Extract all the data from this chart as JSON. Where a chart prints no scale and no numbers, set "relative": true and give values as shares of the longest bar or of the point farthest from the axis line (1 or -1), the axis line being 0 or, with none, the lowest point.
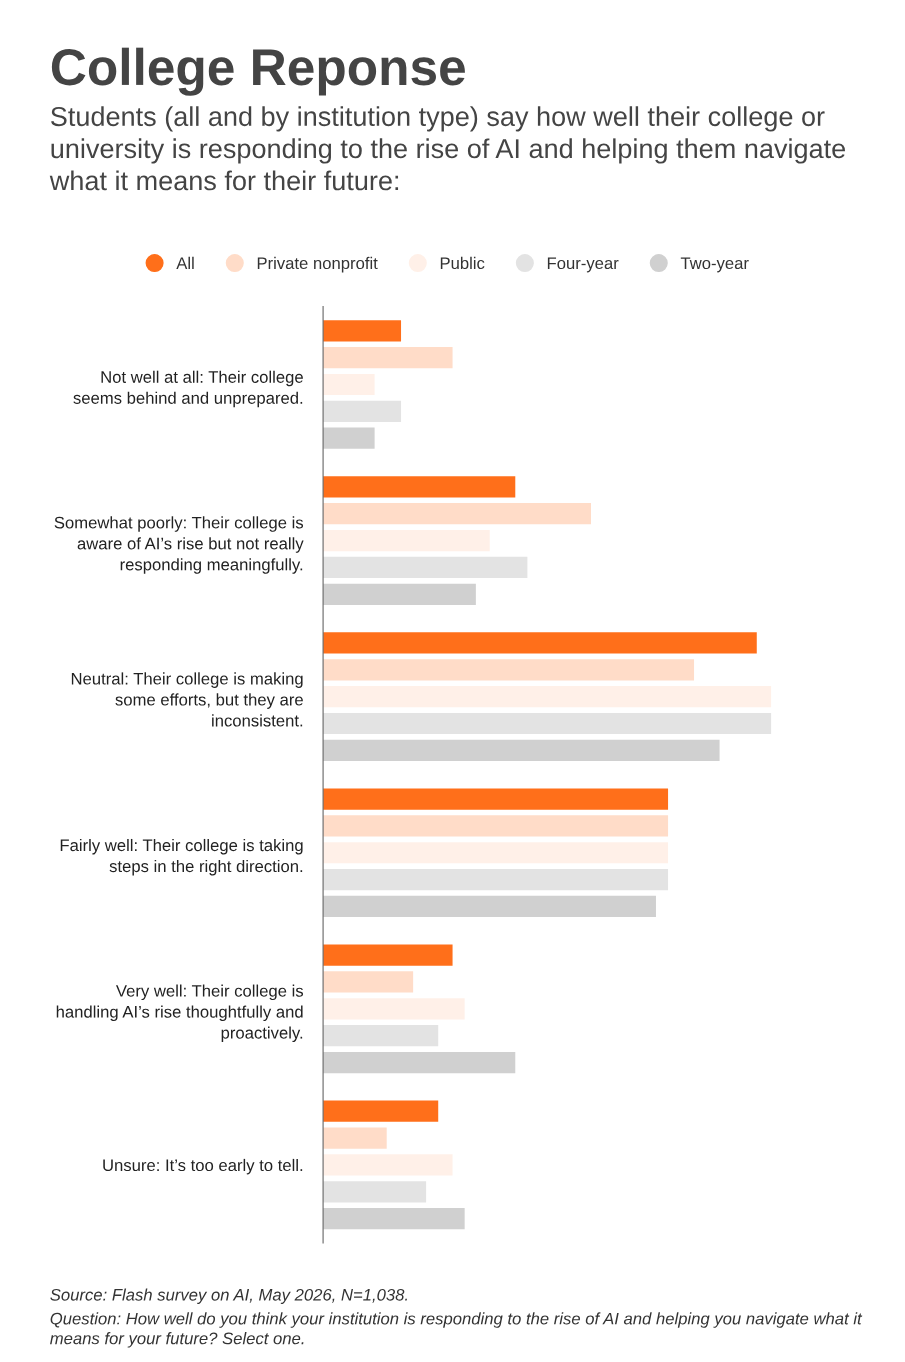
{
  "chart_data": {
    "type": "bar",
    "orientation": "horizontal",
    "relative": true,
    "title": "College Reponse",
    "subtitle": "Students (all and by institution type) say how well their college or university is responding to the rise of AI and helping them navigate what it means for their future:",
    "categories": [
      "Not well at all: Their college\nseems behind and unprepared.",
      "Somewhat poorly: Their college is\naware of AI’s rise but not really\nresponding meaningfully.",
      "Neutral: Their college is making\nsome efforts, but they are\ninconsistent.",
      "Fairly well: Their college is taking\nsteps in the right direction.",
      "Very well: Their college is\nhandling AI’s rise thoughtfully and\nproactively.",
      "Unsure: It’s too early to tell."
    ],
    "series": [
      {
        "name": "All",
        "color": "#ff6f1a",
        "values": [
          0.174,
          0.429,
          0.968,
          0.77,
          0.289,
          0.257
        ]
      },
      {
        "name": "Private nonprofit",
        "color": "#ffdcc8",
        "values": [
          0.289,
          0.598,
          0.828,
          0.77,
          0.201,
          0.142
        ]
      },
      {
        "name": "Public",
        "color": "#fff0e8",
        "values": [
          0.115,
          0.372,
          1,
          0.77,
          0.316,
          0.289
        ]
      },
      {
        "name": "Four-year",
        "color": "#e3e3e3",
        "values": [
          0.174,
          0.456,
          1,
          0.77,
          0.257,
          0.23
        ]
      },
      {
        "name": "Two-year",
        "color": "#d0d0d0",
        "values": [
          0.115,
          0.341,
          0.885,
          0.743,
          0.429,
          0.316
        ]
      }
    ],
    "legend": "top",
    "grid": false,
    "annotations": [
      "Source: Flash survey on AI, May 2026, N=1,038.",
      "Question: How well do you think your institution is responding to the rise of AI and helping you navigate what it means for your future? Select one."
    ]
  }
}
